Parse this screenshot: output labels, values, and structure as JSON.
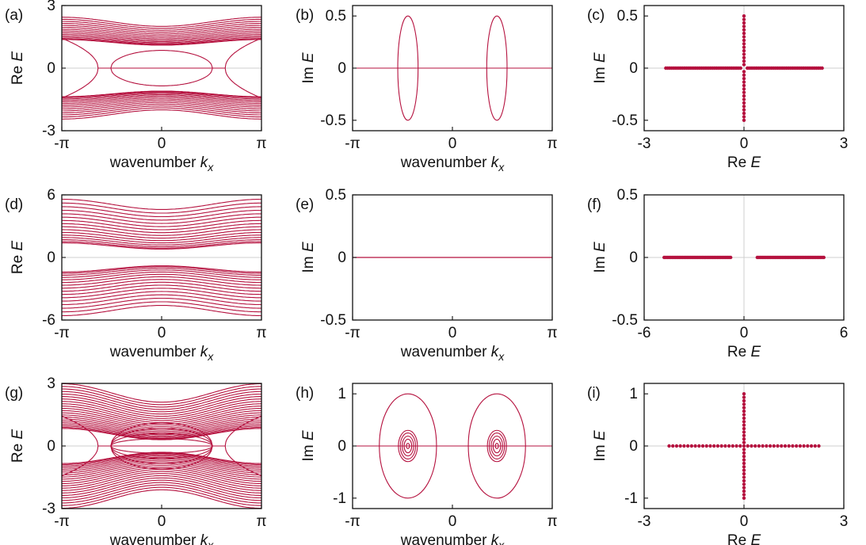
{
  "colors": {
    "series": "#b5123f",
    "zero_line": "#cfcfcf",
    "frame": "#111111"
  },
  "chart_data": [
    {
      "id": "a",
      "label": "(a)",
      "type": "line",
      "xlabel": "wavenumber",
      "xlabel_sym": "k",
      "xlabel_sub": "x",
      "ylabel_pre": "Re",
      "ylabel_sym": "E",
      "xlim": [
        -3.1416,
        3.1416
      ],
      "ylim": [
        -3,
        3
      ],
      "xticks": [
        "-π",
        "0",
        "π"
      ],
      "yticks": [
        "-3",
        "0",
        "3"
      ],
      "series": [
        {
          "kind": "bands",
          "gap": 1.1,
          "width": 0.9,
          "amp": 0.45,
          "count": 14,
          "extra": "eye"
        }
      ]
    },
    {
      "id": "b",
      "label": "(b)",
      "type": "line",
      "xlabel": "wavenumber",
      "xlabel_sym": "k",
      "xlabel_sub": "x",
      "ylabel_pre": "Im",
      "ylabel_sym": "E",
      "xlim": [
        -3.1416,
        3.1416
      ],
      "ylim": [
        -0.6,
        0.6
      ],
      "xticks": [
        "-π",
        "0",
        "π"
      ],
      "yticks": [
        "-0.5",
        "0",
        "0.5"
      ],
      "series": [
        {
          "kind": "loops",
          "centers": [
            -1.4,
            1.4
          ],
          "rx": [
            0.32
          ],
          "ry": [
            0.5
          ]
        }
      ]
    },
    {
      "id": "c",
      "label": "(c)",
      "type": "scatter",
      "xlabel": "Re",
      "xlabel_sym": "E",
      "ylabel_pre": "Im",
      "ylabel_sym": "E",
      "xlim": [
        -3,
        3
      ],
      "ylim": [
        -0.6,
        0.6
      ],
      "xticks": [
        "-3",
        "0",
        "3"
      ],
      "yticks": [
        "-0.5",
        "0",
        "0.5"
      ],
      "series": [
        {
          "kind": "cross",
          "hx": [
            [
              -2.35,
              -0.1
            ],
            [
              0.1,
              2.35
            ]
          ],
          "vy": [
            -0.5,
            0.5
          ]
        }
      ]
    },
    {
      "id": "d",
      "label": "(d)",
      "type": "line",
      "xlabel": "wavenumber",
      "xlabel_sym": "k",
      "xlabel_sub": "x",
      "ylabel_pre": "Re",
      "ylabel_sym": "E",
      "xlim": [
        -3.1416,
        3.1416
      ],
      "ylim": [
        -6,
        6
      ],
      "xticks": [
        "-π",
        "0",
        "π"
      ],
      "yticks": [
        "-6",
        "0",
        "6"
      ],
      "series": [
        {
          "kind": "bands",
          "gap": 0.8,
          "width": 3.8,
          "amp": 1.0,
          "count": 16,
          "extra": ""
        }
      ]
    },
    {
      "id": "e",
      "label": "(e)",
      "type": "line",
      "xlabel": "wavenumber",
      "xlabel_sym": "k",
      "xlabel_sub": "x",
      "ylabel_pre": "Im",
      "ylabel_sym": "E",
      "xlim": [
        -3.1416,
        3.1416
      ],
      "ylim": [
        -0.5,
        0.5
      ],
      "xticks": [
        "-π",
        "0",
        "π"
      ],
      "yticks": [
        "-0.5",
        "0",
        "0.5"
      ],
      "series": [
        {
          "kind": "flat"
        }
      ]
    },
    {
      "id": "f",
      "label": "(f)",
      "type": "scatter",
      "xlabel": "Re",
      "xlabel_sym": "E",
      "ylabel_pre": "Im",
      "ylabel_sym": "E",
      "xlim": [
        -6,
        6
      ],
      "ylim": [
        -0.5,
        0.5
      ],
      "xticks": [
        "-6",
        "0",
        "6"
      ],
      "yticks": [
        "-0.5",
        "0",
        "0.5"
      ],
      "series": [
        {
          "kind": "cross",
          "hx": [
            [
              -4.8,
              -0.8
            ],
            [
              0.8,
              4.8
            ]
          ],
          "vy": null
        }
      ]
    },
    {
      "id": "g",
      "label": "(g)",
      "type": "line",
      "xlabel": "wavenumber",
      "xlabel_sym": "k",
      "xlabel_sub": "x",
      "ylabel_pre": "Re",
      "ylabel_sym": "E",
      "xlim": [
        -3.1416,
        3.1416
      ],
      "ylim": [
        -3,
        3
      ],
      "xticks": [
        "-π",
        "0",
        "π"
      ],
      "yticks": [
        "-3",
        "0",
        "3"
      ],
      "series": [
        {
          "kind": "bands",
          "gap": 0.3,
          "width": 1.8,
          "amp": 0.9,
          "count": 22,
          "extra": "eyes"
        }
      ]
    },
    {
      "id": "h",
      "label": "(h)",
      "type": "line",
      "xlabel": "wavenumber",
      "xlabel_sym": "k",
      "xlabel_sub": "x",
      "ylabel_pre": "Im",
      "ylabel_sym": "E",
      "xlim": [
        -3.1416,
        3.1416
      ],
      "ylim": [
        -1.2,
        1.2
      ],
      "xticks": [
        "-π",
        "0",
        "π"
      ],
      "yticks": [
        "-1",
        "0",
        "1"
      ],
      "series": [
        {
          "kind": "loops",
          "centers": [
            -1.4,
            1.4
          ],
          "rx": [
            0.9,
            0.3,
            0.24,
            0.18,
            0.12,
            0.05
          ],
          "ry": [
            1.0,
            0.3,
            0.25,
            0.19,
            0.13,
            0.05
          ]
        }
      ]
    },
    {
      "id": "i",
      "label": "(i)",
      "type": "scatter",
      "xlabel": "Re",
      "xlabel_sym": "E",
      "ylabel_pre": "Im",
      "ylabel_sym": "E",
      "xlim": [
        -3,
        3
      ],
      "ylim": [
        -1.2,
        1.2
      ],
      "xticks": [
        "-3",
        "0",
        "3"
      ],
      "yticks": [
        "-1",
        "0",
        "1"
      ],
      "series": [
        {
          "kind": "cross",
          "hx": [
            [
              -2.25,
              2.25
            ]
          ],
          "vy": [
            -1,
            1
          ]
        }
      ]
    }
  ]
}
